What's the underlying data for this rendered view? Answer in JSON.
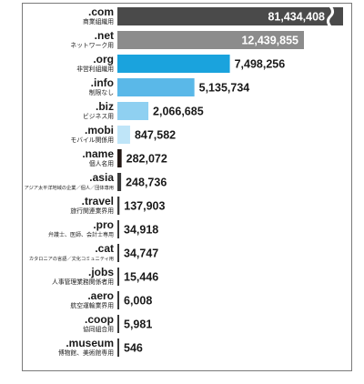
{
  "chart_data": {
    "type": "bar",
    "orientation": "horizontal",
    "title": "",
    "xlabel": "",
    "ylabel": "",
    "grid": false,
    "legend": "none",
    "axis_break_on_first_bar": true,
    "categories": [
      {
        "domain": ".com",
        "description": "商業組織用"
      },
      {
        "domain": ".net",
        "description": "ネットワーク用"
      },
      {
        "domain": ".org",
        "description": "非営利組織用"
      },
      {
        "domain": ".info",
        "description": "制限なし"
      },
      {
        "domain": ".biz",
        "description": "ビジネス用"
      },
      {
        "domain": ".mobi",
        "description": "モバイル関係用"
      },
      {
        "domain": ".name",
        "description": "個人名用"
      },
      {
        "domain": ".asia",
        "description": "アジア太平洋地域の企業／個人／団体専用"
      },
      {
        "domain": ".travel",
        "description": "旅行関連業界用"
      },
      {
        "domain": ".pro",
        "description": "弁護士、医師、会計士専用"
      },
      {
        "domain": ".cat",
        "description": "カタロニアの言語／文化コミュニティ用"
      },
      {
        "domain": ".jobs",
        "description": "人事管理業務関係者用"
      },
      {
        "domain": ".aero",
        "description": "航空運輸業界用"
      },
      {
        "domain": ".coop",
        "description": "協同組合用"
      },
      {
        "domain": ".museum",
        "description": "博物館、美術館専用"
      }
    ],
    "values": [
      81434408,
      12439855,
      7498256,
      5135734,
      2066685,
      847582,
      282072,
      248736,
      137903,
      34918,
      34747,
      15446,
      6008,
      5981,
      546
    ],
    "value_labels": [
      "81,434,408",
      "12,439,855",
      "7,498,256",
      "5,135,734",
      "2,066,685",
      "847,582",
      "282,072",
      "248,736",
      "137,903",
      "34,918",
      "34,747",
      "15,446",
      "6,008",
      "5,981",
      "546"
    ],
    "bar_colors": [
      "#4a4a4a",
      "#8c8c8c",
      "#1aa3dd",
      "#5ab8e8",
      "#8fd0f1",
      "#bfe5f8",
      "#231815",
      "#3a3a3a",
      "#3a3a3a",
      "#3a3a3a",
      "#3a3a3a",
      "#3a3a3a",
      "#3a3a3a",
      "#3a3a3a",
      "#3a3a3a"
    ],
    "label_colors": [
      "#ffffff",
      "#ffffff",
      "#1a1a1a",
      "#1a1a1a",
      "#1a1a1a",
      "#1a1a1a",
      "#1a1a1a",
      "#1a1a1a",
      "#1a1a1a",
      "#1a1a1a",
      "#1a1a1a",
      "#1a1a1a",
      "#1a1a1a",
      "#1a1a1a",
      "#1a1a1a"
    ]
  }
}
